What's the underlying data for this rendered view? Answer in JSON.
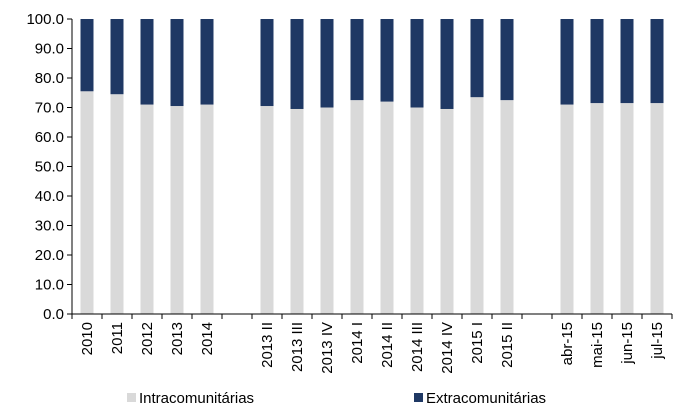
{
  "chart_data": {
    "type": "bar",
    "stacked": true,
    "categories": [
      "2010",
      "2011",
      "2012",
      "2013",
      "2014",
      "",
      "2013 II",
      "2013 III",
      "2013 IV",
      "2014 I",
      "2014 II",
      "2014 III",
      "2014 IV",
      "2015 I",
      "2015 II",
      "",
      "abr-15",
      "mai-15",
      "jun-15",
      "jul-15"
    ],
    "series": [
      {
        "name": "Intracomunitárias",
        "color": "#d9d9d9",
        "values": [
          75.5,
          74.5,
          71.0,
          70.5,
          71.0,
          null,
          70.5,
          69.5,
          70.0,
          72.5,
          72.0,
          70.0,
          69.5,
          73.5,
          72.5,
          null,
          71.0,
          71.5,
          71.5,
          71.5
        ]
      },
      {
        "name": "Extracomunitárias",
        "color": "#1f3864",
        "values": [
          24.5,
          25.5,
          29.0,
          29.5,
          29.0,
          null,
          29.5,
          30.5,
          30.0,
          27.5,
          28.0,
          30.0,
          30.5,
          26.5,
          27.5,
          null,
          29.0,
          28.5,
          28.5,
          28.5
        ]
      }
    ],
    "ylim": [
      0,
      100
    ],
    "yticks": [
      "0.0",
      "10.0",
      "20.0",
      "30.0",
      "40.0",
      "50.0",
      "60.0",
      "70.0",
      "80.0",
      "90.0",
      "100.0"
    ],
    "grid": false,
    "legend_position": "bottom"
  }
}
